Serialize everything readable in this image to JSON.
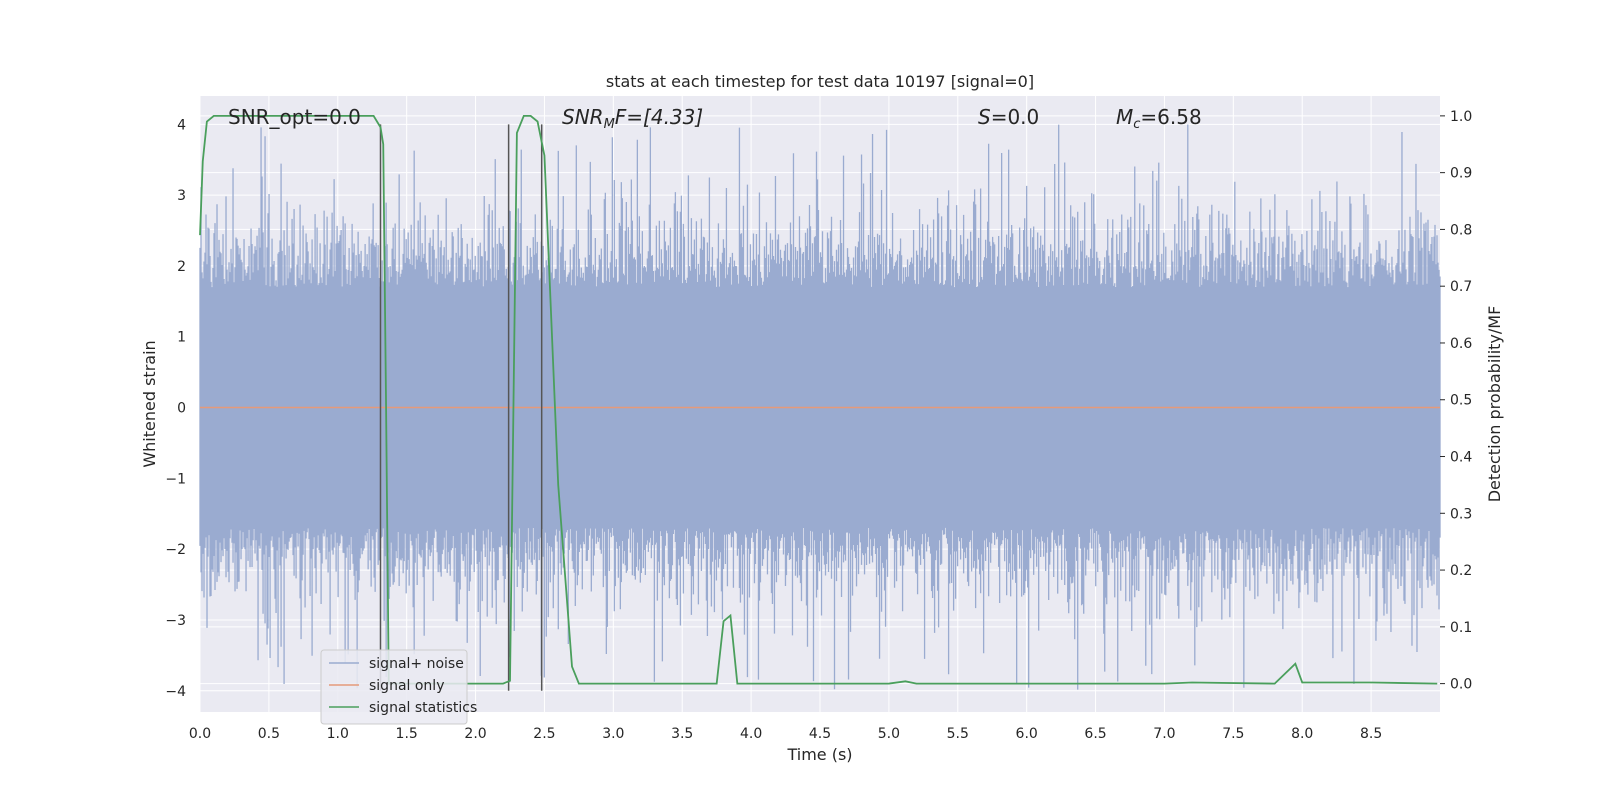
{
  "chart_data": {
    "type": "line",
    "title": "stats at each timestep for test data 10197 [signal=0]",
    "xlabel": "Time (s)",
    "ylabel": "Whitened strain",
    "y2label": "Detection probability/MF",
    "xlim": [
      0,
      9.0
    ],
    "ylim": [
      -4.3,
      4.4
    ],
    "y2lim": [
      -0.05,
      1.035
    ],
    "grid": true,
    "legend_position": "lower-left",
    "xticks": [
      "0.0",
      "0.5",
      "1.0",
      "1.5",
      "2.0",
      "2.5",
      "3.0",
      "3.5",
      "4.0",
      "4.5",
      "5.0",
      "5.5",
      "6.0",
      "6.5",
      "7.0",
      "7.5",
      "8.0",
      "8.5"
    ],
    "yticks": [
      "−4",
      "−3",
      "−2",
      "−1",
      "0",
      "1",
      "2",
      "3",
      "4"
    ],
    "y2ticks": [
      "0.0",
      "0.1",
      "0.2",
      "0.3",
      "0.4",
      "0.5",
      "0.6",
      "0.7",
      "0.8",
      "0.9",
      "1.0"
    ],
    "annotations": {
      "snr_opt": "SNR_opt=0.0",
      "snr_mf_main": "SNR",
      "snr_mf_sub": "M",
      "snr_mf_rest": "F=[4.33]",
      "s_var": "S",
      "s_rest": "=0.0",
      "mc_var": "M",
      "mc_sub": "c",
      "mc_rest": "=6.58"
    },
    "series": [
      {
        "name": "signal+ noise",
        "color": "#9aabd0",
        "description": "whitened noise, approx amplitude envelope -4 to 4 around 0",
        "envelope_abs": 4.0
      },
      {
        "name": "signal only",
        "color": "#e59a7a",
        "y_constant": 0.0
      },
      {
        "name": "signal statistics",
        "color": "#4a9f5c",
        "axis": "right",
        "x": [
          0.0,
          0.02,
          0.05,
          0.1,
          0.2,
          0.5,
          1.0,
          1.26,
          1.31,
          1.33,
          1.35,
          1.37,
          2.0,
          2.2,
          2.25,
          2.3,
          2.35,
          2.4,
          2.45,
          2.5,
          2.6,
          2.7,
          2.75,
          3.0,
          3.5,
          3.75,
          3.8,
          3.85,
          3.9,
          4.0,
          5.0,
          5.12,
          5.2,
          6.0,
          7.0,
          7.2,
          7.8,
          7.95,
          8.0,
          8.5,
          8.98
        ],
        "y": [
          0.79,
          0.92,
          0.99,
          1.0,
          1.0,
          1.0,
          1.0,
          1.0,
          0.98,
          0.95,
          0.5,
          0.0,
          0.0,
          0.0,
          0.005,
          0.97,
          1.0,
          1.0,
          0.99,
          0.93,
          0.35,
          0.03,
          0.0,
          0.0,
          0.0,
          0.0,
          0.11,
          0.12,
          0.0,
          0.0,
          0.0,
          0.004,
          0.0,
          0.0,
          0.0,
          0.002,
          0.0,
          0.035,
          0.002,
          0.002,
          0.0
        ]
      }
    ],
    "vlines": [
      1.31,
      2.24,
      2.48
    ]
  }
}
